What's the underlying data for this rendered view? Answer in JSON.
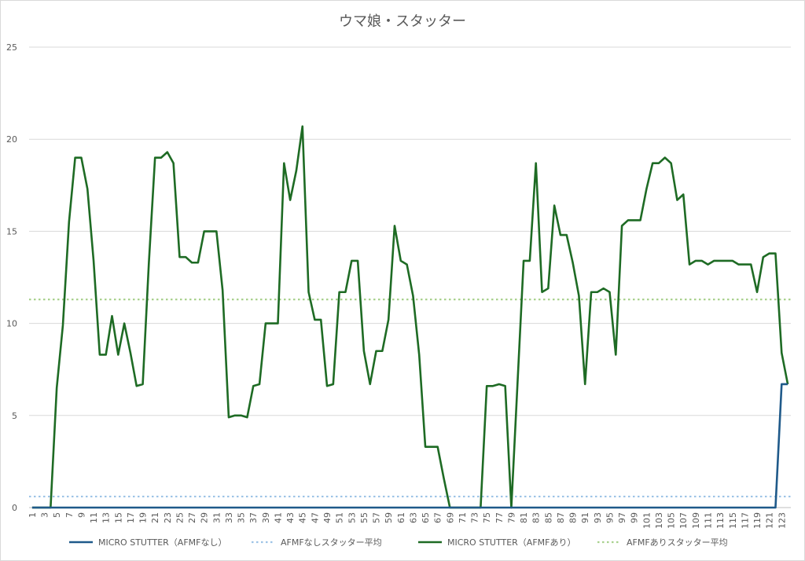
{
  "chart_data": {
    "type": "line",
    "title": "ウマ娘・スタッター",
    "xlabel": "",
    "ylabel": "",
    "ylim": [
      0,
      25
    ],
    "yticks": [
      0,
      5,
      10,
      15,
      20,
      25
    ],
    "x_start": 1,
    "x_end": 124,
    "x_tick_step": 2,
    "grid": true,
    "legend_position": "bottom",
    "series": [
      {
        "name": "MICRO STUTTER（AFMFなし）",
        "color": "#1f5a8a",
        "style": "solid",
        "values": [
          0,
          0,
          0,
          0,
          0,
          0,
          0,
          0,
          0,
          0,
          0,
          0,
          0,
          0,
          0,
          0,
          0,
          0,
          0,
          0,
          0,
          0,
          0,
          0,
          0,
          0,
          0,
          0,
          0,
          0,
          0,
          0,
          0,
          0,
          0,
          0,
          0,
          0,
          0,
          0,
          0,
          0,
          0,
          0,
          0,
          0,
          0,
          0,
          0,
          0,
          0,
          0,
          0,
          0,
          0,
          0,
          0,
          0,
          0,
          0,
          0,
          0,
          0,
          0,
          0,
          0,
          0,
          0,
          0,
          0,
          0,
          0,
          0,
          0,
          0,
          0,
          0,
          0,
          0,
          0,
          0,
          0,
          0,
          0,
          0,
          0,
          0,
          0,
          0,
          0,
          0,
          0,
          0,
          0,
          0,
          0,
          0,
          0,
          0,
          0,
          0,
          0,
          0,
          0,
          0,
          0,
          0,
          0,
          0,
          0,
          0,
          0,
          0,
          0,
          0,
          0,
          0,
          0,
          0,
          0,
          0,
          0,
          6.7,
          6.7
        ]
      },
      {
        "name": "AFMFなしスタッター平均",
        "color": "#9dc3e6",
        "style": "dotted",
        "constant": 0.6
      },
      {
        "name": "MICRO STUTTER（AFMFあり）",
        "color": "#1e6b24",
        "style": "solid",
        "values": [
          0,
          0,
          0,
          0,
          6.5,
          9.9,
          15.5,
          19,
          19,
          17.3,
          13.4,
          8.3,
          8.3,
          10.4,
          8.3,
          10,
          8.4,
          6.6,
          6.7,
          13.3,
          19,
          19,
          19.3,
          18.7,
          13.6,
          13.6,
          13.3,
          13.3,
          15,
          15,
          15,
          11.8,
          4.9,
          5,
          5,
          4.9,
          6.6,
          6.7,
          10,
          10,
          10,
          18.7,
          16.7,
          18.3,
          20.7,
          11.7,
          10.2,
          10.2,
          6.6,
          6.7,
          11.7,
          11.7,
          13.4,
          13.4,
          8.5,
          6.7,
          8.5,
          8.5,
          10.2,
          15.3,
          13.4,
          13.2,
          11.5,
          8.3,
          3.3,
          3.3,
          3.3,
          1.6,
          0,
          0,
          0,
          0,
          0,
          0,
          6.6,
          6.6,
          6.7,
          6.6,
          0,
          6.7,
          13.4,
          13.4,
          18.7,
          11.7,
          11.9,
          16.4,
          14.8,
          14.8,
          13.3,
          11.5,
          6.7,
          11.7,
          11.7,
          11.9,
          11.7,
          8.3,
          15.3,
          15.6,
          15.6,
          15.6,
          17.3,
          18.7,
          18.7,
          19,
          18.7,
          16.7,
          17,
          13.2,
          13.4,
          13.4,
          13.2,
          13.4,
          13.4,
          13.4,
          13.4,
          13.2,
          13.2,
          13.2,
          11.7,
          13.6,
          13.8,
          13.8,
          8.4,
          6.7
        ]
      },
      {
        "name": "AFMFありスタッター平均",
        "color": "#a9d18e",
        "style": "dotted",
        "constant": 11.3
      }
    ]
  }
}
